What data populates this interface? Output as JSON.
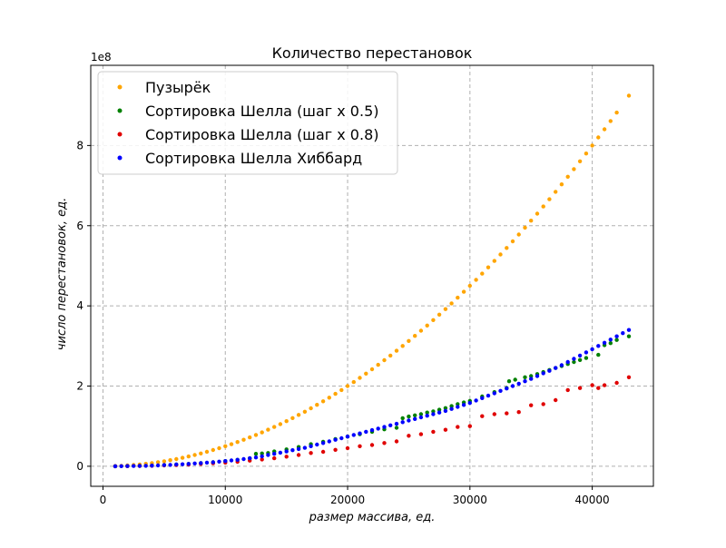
{
  "chart_data": {
    "type": "scatter",
    "title": "Количество перестановок",
    "xlabel": "размер массива, ед.",
    "ylabel": "число перестановок, ед.",
    "y_offset_label": "1e8",
    "xlim": [
      -1000,
      45000
    ],
    "ylim": [
      -0.5,
      10.0
    ],
    "y_scale_note": "y values in units of 1e8",
    "x_ticks": [
      0,
      10000,
      20000,
      30000,
      40000
    ],
    "x_tick_labels": [
      "0",
      "10000",
      "20000",
      "30000",
      "40000"
    ],
    "y_ticks": [
      0,
      2,
      4,
      6,
      8
    ],
    "y_tick_labels": [
      "0",
      "2",
      "4",
      "6",
      "8"
    ],
    "grid": true,
    "legend_position": "top-left",
    "series": [
      {
        "name": "Пузырёк",
        "color": "#ffa500",
        "points": [
          [
            1000,
            0.005
          ],
          [
            1500,
            0.011
          ],
          [
            2000,
            0.02
          ],
          [
            2500,
            0.031
          ],
          [
            3000,
            0.045
          ],
          [
            3500,
            0.061
          ],
          [
            4000,
            0.08
          ],
          [
            4500,
            0.101
          ],
          [
            5000,
            0.125
          ],
          [
            5500,
            0.151
          ],
          [
            6000,
            0.18
          ],
          [
            6500,
            0.211
          ],
          [
            7000,
            0.245
          ],
          [
            7500,
            0.281
          ],
          [
            8000,
            0.32
          ],
          [
            8500,
            0.361
          ],
          [
            9000,
            0.405
          ],
          [
            9500,
            0.451
          ],
          [
            10000,
            0.5
          ],
          [
            10500,
            0.551
          ],
          [
            11000,
            0.605
          ],
          [
            11500,
            0.661
          ],
          [
            12000,
            0.72
          ],
          [
            12500,
            0.781
          ],
          [
            13000,
            0.845
          ],
          [
            13500,
            0.911
          ],
          [
            14000,
            0.98
          ],
          [
            14500,
            1.051
          ],
          [
            15000,
            1.125
          ],
          [
            15500,
            1.201
          ],
          [
            16000,
            1.28
          ],
          [
            16500,
            1.361
          ],
          [
            17000,
            1.445
          ],
          [
            17500,
            1.531
          ],
          [
            18000,
            1.62
          ],
          [
            18500,
            1.711
          ],
          [
            19000,
            1.805
          ],
          [
            19500,
            1.901
          ],
          [
            20000,
            2.0
          ],
          [
            20500,
            2.101
          ],
          [
            21000,
            2.205
          ],
          [
            21500,
            2.311
          ],
          [
            22000,
            2.42
          ],
          [
            22500,
            2.531
          ],
          [
            23000,
            2.645
          ],
          [
            23500,
            2.761
          ],
          [
            24000,
            2.88
          ],
          [
            24500,
            3.001
          ],
          [
            25000,
            3.125
          ],
          [
            25500,
            3.251
          ],
          [
            26000,
            3.38
          ],
          [
            26500,
            3.511
          ],
          [
            27000,
            3.645
          ],
          [
            27500,
            3.781
          ],
          [
            28000,
            3.92
          ],
          [
            28500,
            4.061
          ],
          [
            29000,
            4.205
          ],
          [
            29500,
            4.351
          ],
          [
            30000,
            4.5
          ],
          [
            30500,
            4.651
          ],
          [
            31000,
            4.805
          ],
          [
            31500,
            4.961
          ],
          [
            32000,
            5.12
          ],
          [
            32500,
            5.281
          ],
          [
            33000,
            5.445
          ],
          [
            33500,
            5.611
          ],
          [
            34000,
            5.78
          ],
          [
            34500,
            5.951
          ],
          [
            35000,
            6.125
          ],
          [
            35500,
            6.301
          ],
          [
            36000,
            6.48
          ],
          [
            36500,
            6.661
          ],
          [
            37000,
            6.845
          ],
          [
            37500,
            7.031
          ],
          [
            38000,
            7.22
          ],
          [
            38500,
            7.411
          ],
          [
            39000,
            7.605
          ],
          [
            39500,
            7.801
          ],
          [
            40000,
            8.0
          ],
          [
            40500,
            8.201
          ],
          [
            41000,
            8.405
          ],
          [
            41500,
            8.611
          ],
          [
            42000,
            8.82
          ],
          [
            43000,
            9.245
          ]
        ]
      },
      {
        "name": "Сортировка Шелла (шаг х 0.5)",
        "color": "#008000",
        "points": [
          [
            1000,
            0.001
          ],
          [
            2000,
            0.004
          ],
          [
            3000,
            0.009
          ],
          [
            4000,
            0.016
          ],
          [
            5000,
            0.03
          ],
          [
            6000,
            0.045
          ],
          [
            7000,
            0.06
          ],
          [
            8000,
            0.08
          ],
          [
            9000,
            0.1
          ],
          [
            10000,
            0.13
          ],
          [
            11000,
            0.16
          ],
          [
            12000,
            0.2
          ],
          [
            12500,
            0.31
          ],
          [
            13000,
            0.32
          ],
          [
            13500,
            0.33
          ],
          [
            14000,
            0.37
          ],
          [
            15000,
            0.42
          ],
          [
            16000,
            0.48
          ],
          [
            17000,
            0.55
          ],
          [
            18000,
            0.61
          ],
          [
            19000,
            0.68
          ],
          [
            20000,
            0.74
          ],
          [
            21000,
            0.8
          ],
          [
            22000,
            0.86
          ],
          [
            23000,
            0.92
          ],
          [
            24000,
            0.96
          ],
          [
            24500,
            1.2
          ],
          [
            25000,
            1.24
          ],
          [
            25500,
            1.27
          ],
          [
            26000,
            1.3
          ],
          [
            26500,
            1.34
          ],
          [
            27000,
            1.37
          ],
          [
            27500,
            1.41
          ],
          [
            28000,
            1.45
          ],
          [
            28500,
            1.5
          ],
          [
            29000,
            1.55
          ],
          [
            29500,
            1.59
          ],
          [
            30000,
            1.63
          ],
          [
            31000,
            1.74
          ],
          [
            32000,
            1.85
          ],
          [
            33000,
            1.95
          ],
          [
            33200,
            2.12
          ],
          [
            33700,
            2.16
          ],
          [
            34500,
            2.22
          ],
          [
            35000,
            2.25
          ],
          [
            35500,
            2.3
          ],
          [
            36000,
            2.35
          ],
          [
            36500,
            2.4
          ],
          [
            37000,
            2.45
          ],
          [
            37500,
            2.5
          ],
          [
            38000,
            2.55
          ],
          [
            38500,
            2.6
          ],
          [
            39000,
            2.65
          ],
          [
            39500,
            2.7
          ],
          [
            40500,
            2.78
          ],
          [
            41000,
            3.02
          ],
          [
            41500,
            3.07
          ],
          [
            42000,
            3.15
          ],
          [
            43000,
            3.24
          ]
        ]
      },
      {
        "name": "Сортировка Шелла (шаг х 0.8)",
        "color": "#e00000",
        "points": [
          [
            1000,
            0.001
          ],
          [
            2000,
            0.003
          ],
          [
            3000,
            0.007
          ],
          [
            4000,
            0.012
          ],
          [
            5000,
            0.02
          ],
          [
            6000,
            0.03
          ],
          [
            7000,
            0.04
          ],
          [
            8000,
            0.06
          ],
          [
            9000,
            0.075
          ],
          [
            10000,
            0.09
          ],
          [
            11000,
            0.11
          ],
          [
            12000,
            0.14
          ],
          [
            13000,
            0.17
          ],
          [
            14000,
            0.2
          ],
          [
            15000,
            0.24
          ],
          [
            16000,
            0.28
          ],
          [
            17000,
            0.33
          ],
          [
            18000,
            0.36
          ],
          [
            19000,
            0.41
          ],
          [
            20000,
            0.45
          ],
          [
            21000,
            0.5
          ],
          [
            22000,
            0.53
          ],
          [
            23000,
            0.58
          ],
          [
            24000,
            0.62
          ],
          [
            25000,
            0.76
          ],
          [
            26000,
            0.8
          ],
          [
            27000,
            0.86
          ],
          [
            28000,
            0.91
          ],
          [
            29000,
            0.98
          ],
          [
            30000,
            1.0
          ],
          [
            31000,
            1.25
          ],
          [
            32000,
            1.3
          ],
          [
            33000,
            1.32
          ],
          [
            34000,
            1.35
          ],
          [
            35000,
            1.52
          ],
          [
            36000,
            1.55
          ],
          [
            37000,
            1.65
          ],
          [
            38000,
            1.9
          ],
          [
            39000,
            1.95
          ],
          [
            40000,
            2.02
          ],
          [
            40500,
            1.95
          ],
          [
            41000,
            2.02
          ],
          [
            42000,
            2.08
          ],
          [
            43000,
            2.22
          ]
        ]
      },
      {
        "name": "Сортировка Шелла Хиббард",
        "color": "#0000ff",
        "points": [
          [
            1000,
            0.001
          ],
          [
            1500,
            0.002
          ],
          [
            2000,
            0.004
          ],
          [
            2500,
            0.006
          ],
          [
            3000,
            0.009
          ],
          [
            3500,
            0.012
          ],
          [
            4000,
            0.016
          ],
          [
            4500,
            0.02
          ],
          [
            5000,
            0.03
          ],
          [
            5500,
            0.035
          ],
          [
            6000,
            0.045
          ],
          [
            6500,
            0.05
          ],
          [
            7000,
            0.06
          ],
          [
            7500,
            0.07
          ],
          [
            8000,
            0.08
          ],
          [
            8500,
            0.09
          ],
          [
            9000,
            0.1
          ],
          [
            9500,
            0.115
          ],
          [
            10000,
            0.13
          ],
          [
            10500,
            0.145
          ],
          [
            11000,
            0.16
          ],
          [
            11500,
            0.18
          ],
          [
            12000,
            0.2
          ],
          [
            12500,
            0.22
          ],
          [
            13000,
            0.25
          ],
          [
            13500,
            0.28
          ],
          [
            14000,
            0.31
          ],
          [
            14500,
            0.34
          ],
          [
            15000,
            0.37
          ],
          [
            15500,
            0.4
          ],
          [
            16000,
            0.43
          ],
          [
            16500,
            0.46
          ],
          [
            17000,
            0.5
          ],
          [
            17500,
            0.54
          ],
          [
            18000,
            0.58
          ],
          [
            18500,
            0.62
          ],
          [
            19000,
            0.66
          ],
          [
            19500,
            0.7
          ],
          [
            20000,
            0.74
          ],
          [
            20500,
            0.78
          ],
          [
            21000,
            0.82
          ],
          [
            21500,
            0.86
          ],
          [
            22000,
            0.9
          ],
          [
            22500,
            0.94
          ],
          [
            23000,
            0.98
          ],
          [
            23500,
            1.02
          ],
          [
            24000,
            1.06
          ],
          [
            24500,
            1.1
          ],
          [
            25000,
            1.14
          ],
          [
            25500,
            1.18
          ],
          [
            26000,
            1.22
          ],
          [
            26500,
            1.26
          ],
          [
            27000,
            1.3
          ],
          [
            27500,
            1.34
          ],
          [
            28000,
            1.38
          ],
          [
            28500,
            1.43
          ],
          [
            29000,
            1.48
          ],
          [
            29500,
            1.53
          ],
          [
            30000,
            1.58
          ],
          [
            30500,
            1.64
          ],
          [
            31000,
            1.7
          ],
          [
            31500,
            1.76
          ],
          [
            32000,
            1.82
          ],
          [
            32500,
            1.88
          ],
          [
            33000,
            1.94
          ],
          [
            33500,
            2.0
          ],
          [
            34000,
            2.06
          ],
          [
            34500,
            2.12
          ],
          [
            35000,
            2.18
          ],
          [
            35500,
            2.25
          ],
          [
            36000,
            2.32
          ],
          [
            36500,
            2.38
          ],
          [
            37000,
            2.45
          ],
          [
            37500,
            2.52
          ],
          [
            38000,
            2.6
          ],
          [
            38500,
            2.68
          ],
          [
            39000,
            2.76
          ],
          [
            39500,
            2.84
          ],
          [
            40000,
            2.92
          ],
          [
            40500,
            3.0
          ],
          [
            41000,
            3.08
          ],
          [
            41500,
            3.16
          ],
          [
            42000,
            3.24
          ],
          [
            42500,
            3.32
          ],
          [
            43000,
            3.4
          ]
        ]
      }
    ]
  }
}
